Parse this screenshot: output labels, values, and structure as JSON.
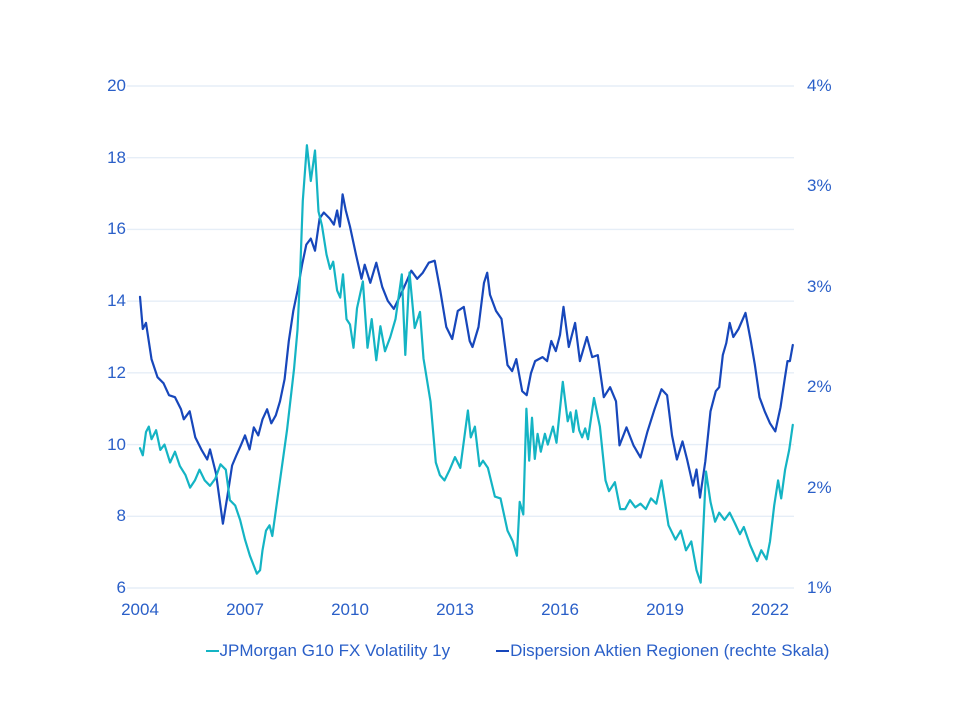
{
  "colors": {
    "teal": "#14b4c4",
    "blue": "#1747bb",
    "label_text": "#2a5fc8",
    "gridline": "#e6eef7",
    "background": "#ffffff"
  },
  "legend": {
    "items": [
      {
        "label": "JPMorgan G10 FX Volatility 1y",
        "color_key": "teal"
      },
      {
        "label": "Dispersion Aktien Regionen (rechte Skala)",
        "color_key": "blue"
      }
    ]
  },
  "chart_data": {
    "type": "line",
    "title": "",
    "grid": "horizontal",
    "legend_position": "bottom",
    "x_axis": {
      "min": 2004,
      "max": 2022.7,
      "ticks": [
        2004,
        2007,
        2010,
        2013,
        2016,
        2019,
        2022
      ]
    },
    "left_axis": {
      "min": 6,
      "max": 20,
      "ticks": [
        20,
        18,
        16,
        14,
        12,
        10,
        8,
        6
      ],
      "tick_labels": [
        "20",
        "18",
        "16",
        "14",
        "12",
        "10",
        "8",
        "6"
      ]
    },
    "right_axis": {
      "min": 1.0,
      "max": 3.5,
      "tick_values": [
        3.5,
        3.0,
        2.5,
        2.0,
        1.5,
        1.0
      ],
      "tick_labels": [
        "4%",
        "3%",
        "3%",
        "2%",
        "2%",
        "1%"
      ]
    },
    "series": [
      {
        "name": "JPMorgan G10 FX Volatility 1y",
        "axis": "left",
        "color_key": "teal",
        "points": [
          [
            2004.0,
            9.9
          ],
          [
            2004.08,
            9.7
          ],
          [
            2004.17,
            10.35
          ],
          [
            2004.25,
            10.5
          ],
          [
            2004.33,
            10.15
          ],
          [
            2004.46,
            10.4
          ],
          [
            2004.58,
            9.85
          ],
          [
            2004.7,
            10.0
          ],
          [
            2004.86,
            9.5
          ],
          [
            2005.0,
            9.8
          ],
          [
            2005.14,
            9.4
          ],
          [
            2005.3,
            9.15
          ],
          [
            2005.43,
            8.8
          ],
          [
            2005.57,
            9.0
          ],
          [
            2005.7,
            9.3
          ],
          [
            2005.85,
            9.0
          ],
          [
            2006.0,
            8.85
          ],
          [
            2006.15,
            9.05
          ],
          [
            2006.3,
            9.45
          ],
          [
            2006.45,
            9.3
          ],
          [
            2006.57,
            8.45
          ],
          [
            2006.72,
            8.3
          ],
          [
            2006.86,
            7.9
          ],
          [
            2007.0,
            7.35
          ],
          [
            2007.14,
            6.9
          ],
          [
            2007.34,
            6.4
          ],
          [
            2007.43,
            6.5
          ],
          [
            2007.5,
            7.05
          ],
          [
            2007.6,
            7.6
          ],
          [
            2007.7,
            7.75
          ],
          [
            2007.78,
            7.45
          ],
          [
            2007.9,
            8.3
          ],
          [
            2008.0,
            9.0
          ],
          [
            2008.1,
            9.7
          ],
          [
            2008.2,
            10.4
          ],
          [
            2008.3,
            11.25
          ],
          [
            2008.4,
            12.1
          ],
          [
            2008.5,
            13.2
          ],
          [
            2008.57,
            14.6
          ],
          [
            2008.65,
            16.8
          ],
          [
            2008.77,
            18.35
          ],
          [
            2008.88,
            17.35
          ],
          [
            2009.0,
            18.2
          ],
          [
            2009.1,
            16.5
          ],
          [
            2009.2,
            16.1
          ],
          [
            2009.33,
            15.3
          ],
          [
            2009.43,
            14.9
          ],
          [
            2009.52,
            15.1
          ],
          [
            2009.63,
            14.3
          ],
          [
            2009.72,
            14.1
          ],
          [
            2009.8,
            14.75
          ],
          [
            2009.9,
            13.5
          ],
          [
            2010.0,
            13.35
          ],
          [
            2010.1,
            12.7
          ],
          [
            2010.2,
            13.8
          ],
          [
            2010.37,
            14.55
          ],
          [
            2010.5,
            12.7
          ],
          [
            2010.62,
            13.5
          ],
          [
            2010.75,
            12.35
          ],
          [
            2010.87,
            13.3
          ],
          [
            2011.0,
            12.6
          ],
          [
            2011.15,
            13.0
          ],
          [
            2011.3,
            13.5
          ],
          [
            2011.48,
            14.75
          ],
          [
            2011.58,
            12.5
          ],
          [
            2011.7,
            14.8
          ],
          [
            2011.85,
            13.25
          ],
          [
            2012.0,
            13.7
          ],
          [
            2012.1,
            12.4
          ],
          [
            2012.3,
            11.2
          ],
          [
            2012.45,
            9.5
          ],
          [
            2012.57,
            9.15
          ],
          [
            2012.7,
            9.0
          ],
          [
            2012.85,
            9.3
          ],
          [
            2013.0,
            9.65
          ],
          [
            2013.15,
            9.35
          ],
          [
            2013.37,
            10.95
          ],
          [
            2013.45,
            10.2
          ],
          [
            2013.57,
            10.5
          ],
          [
            2013.7,
            9.4
          ],
          [
            2013.8,
            9.55
          ],
          [
            2013.94,
            9.35
          ],
          [
            2014.14,
            8.55
          ],
          [
            2014.3,
            8.5
          ],
          [
            2014.5,
            7.6
          ],
          [
            2014.65,
            7.3
          ],
          [
            2014.77,
            6.9
          ],
          [
            2014.85,
            8.4
          ],
          [
            2014.95,
            8.05
          ],
          [
            2015.04,
            11.0
          ],
          [
            2015.12,
            9.55
          ],
          [
            2015.2,
            10.75
          ],
          [
            2015.28,
            9.6
          ],
          [
            2015.36,
            10.3
          ],
          [
            2015.45,
            9.8
          ],
          [
            2015.57,
            10.3
          ],
          [
            2015.65,
            10.0
          ],
          [
            2015.8,
            10.5
          ],
          [
            2015.9,
            10.05
          ],
          [
            2016.08,
            11.75
          ],
          [
            2016.22,
            10.65
          ],
          [
            2016.3,
            10.9
          ],
          [
            2016.38,
            10.35
          ],
          [
            2016.46,
            10.95
          ],
          [
            2016.55,
            10.4
          ],
          [
            2016.63,
            10.2
          ],
          [
            2016.72,
            10.45
          ],
          [
            2016.8,
            10.15
          ],
          [
            2016.97,
            11.3
          ],
          [
            2017.14,
            10.5
          ],
          [
            2017.3,
            9.0
          ],
          [
            2017.4,
            8.7
          ],
          [
            2017.57,
            8.95
          ],
          [
            2017.72,
            8.2
          ],
          [
            2017.86,
            8.2
          ],
          [
            2018.0,
            8.45
          ],
          [
            2018.15,
            8.25
          ],
          [
            2018.3,
            8.35
          ],
          [
            2018.45,
            8.2
          ],
          [
            2018.6,
            8.5
          ],
          [
            2018.75,
            8.35
          ],
          [
            2018.9,
            9.0
          ],
          [
            2019.1,
            7.75
          ],
          [
            2019.3,
            7.35
          ],
          [
            2019.45,
            7.6
          ],
          [
            2019.6,
            7.05
          ],
          [
            2019.75,
            7.3
          ],
          [
            2019.9,
            6.5
          ],
          [
            2020.02,
            6.15
          ],
          [
            2020.17,
            9.25
          ],
          [
            2020.3,
            8.4
          ],
          [
            2020.43,
            7.85
          ],
          [
            2020.55,
            8.1
          ],
          [
            2020.7,
            7.9
          ],
          [
            2020.85,
            8.1
          ],
          [
            2021.0,
            7.8
          ],
          [
            2021.14,
            7.5
          ],
          [
            2021.25,
            7.7
          ],
          [
            2021.43,
            7.2
          ],
          [
            2021.63,
            6.75
          ],
          [
            2021.75,
            7.05
          ],
          [
            2021.9,
            6.8
          ],
          [
            2022.0,
            7.3
          ],
          [
            2022.12,
            8.3
          ],
          [
            2022.23,
            9.0
          ],
          [
            2022.32,
            8.5
          ],
          [
            2022.43,
            9.3
          ],
          [
            2022.55,
            9.85
          ],
          [
            2022.65,
            10.55
          ]
        ]
      },
      {
        "name": "Dispersion Aktien Regionen (rechte Skala)",
        "axis": "right",
        "color_key": "blue",
        "points": [
          [
            2004.0,
            2.45
          ],
          [
            2004.08,
            2.29
          ],
          [
            2004.17,
            2.32
          ],
          [
            2004.33,
            2.14
          ],
          [
            2004.5,
            2.05
          ],
          [
            2004.67,
            2.02
          ],
          [
            2004.83,
            1.96
          ],
          [
            2005.0,
            1.95
          ],
          [
            2005.17,
            1.89
          ],
          [
            2005.25,
            1.84
          ],
          [
            2005.42,
            1.88
          ],
          [
            2005.58,
            1.75
          ],
          [
            2005.75,
            1.69
          ],
          [
            2005.92,
            1.64
          ],
          [
            2006.0,
            1.69
          ],
          [
            2006.17,
            1.57
          ],
          [
            2006.37,
            1.32
          ],
          [
            2006.5,
            1.46
          ],
          [
            2006.63,
            1.61
          ],
          [
            2006.75,
            1.66
          ],
          [
            2006.88,
            1.71
          ],
          [
            2007.0,
            1.76
          ],
          [
            2007.13,
            1.69
          ],
          [
            2007.25,
            1.8
          ],
          [
            2007.38,
            1.76
          ],
          [
            2007.5,
            1.84
          ],
          [
            2007.63,
            1.89
          ],
          [
            2007.75,
            1.82
          ],
          [
            2007.88,
            1.86
          ],
          [
            2008.0,
            1.93
          ],
          [
            2008.13,
            2.04
          ],
          [
            2008.25,
            2.23
          ],
          [
            2008.38,
            2.38
          ],
          [
            2008.5,
            2.48
          ],
          [
            2008.63,
            2.61
          ],
          [
            2008.75,
            2.71
          ],
          [
            2008.88,
            2.74
          ],
          [
            2009.0,
            2.68
          ],
          [
            2009.13,
            2.84
          ],
          [
            2009.25,
            2.87
          ],
          [
            2009.42,
            2.84
          ],
          [
            2009.54,
            2.81
          ],
          [
            2009.63,
            2.88
          ],
          [
            2009.71,
            2.8
          ],
          [
            2009.79,
            2.96
          ],
          [
            2009.88,
            2.88
          ],
          [
            2010.0,
            2.8
          ],
          [
            2010.17,
            2.66
          ],
          [
            2010.33,
            2.54
          ],
          [
            2010.42,
            2.61
          ],
          [
            2010.58,
            2.52
          ],
          [
            2010.75,
            2.62
          ],
          [
            2010.92,
            2.5
          ],
          [
            2011.08,
            2.43
          ],
          [
            2011.25,
            2.39
          ],
          [
            2011.5,
            2.48
          ],
          [
            2011.75,
            2.58
          ],
          [
            2011.92,
            2.54
          ],
          [
            2012.08,
            2.57
          ],
          [
            2012.25,
            2.62
          ],
          [
            2012.42,
            2.63
          ],
          [
            2012.58,
            2.48
          ],
          [
            2012.75,
            2.3
          ],
          [
            2012.92,
            2.24
          ],
          [
            2013.08,
            2.38
          ],
          [
            2013.25,
            2.4
          ],
          [
            2013.42,
            2.23
          ],
          [
            2013.5,
            2.2
          ],
          [
            2013.67,
            2.3
          ],
          [
            2013.83,
            2.52
          ],
          [
            2013.92,
            2.57
          ],
          [
            2014.0,
            2.46
          ],
          [
            2014.17,
            2.38
          ],
          [
            2014.33,
            2.34
          ],
          [
            2014.5,
            2.11
          ],
          [
            2014.63,
            2.08
          ],
          [
            2014.75,
            2.14
          ],
          [
            2014.92,
            1.98
          ],
          [
            2015.05,
            1.96
          ],
          [
            2015.17,
            2.07
          ],
          [
            2015.29,
            2.13
          ],
          [
            2015.5,
            2.15
          ],
          [
            2015.63,
            2.13
          ],
          [
            2015.75,
            2.23
          ],
          [
            2015.88,
            2.18
          ],
          [
            2016.0,
            2.26
          ],
          [
            2016.1,
            2.4
          ],
          [
            2016.25,
            2.2
          ],
          [
            2016.43,
            2.32
          ],
          [
            2016.57,
            2.13
          ],
          [
            2016.77,
            2.25
          ],
          [
            2016.92,
            2.15
          ],
          [
            2017.08,
            2.16
          ],
          [
            2017.25,
            1.95
          ],
          [
            2017.43,
            2.0
          ],
          [
            2017.6,
            1.93
          ],
          [
            2017.7,
            1.71
          ],
          [
            2017.9,
            1.8
          ],
          [
            2018.1,
            1.71
          ],
          [
            2018.3,
            1.65
          ],
          [
            2018.5,
            1.78
          ],
          [
            2018.7,
            1.89
          ],
          [
            2018.9,
            1.99
          ],
          [
            2019.06,
            1.96
          ],
          [
            2019.2,
            1.76
          ],
          [
            2019.34,
            1.64
          ],
          [
            2019.5,
            1.73
          ],
          [
            2019.63,
            1.64
          ],
          [
            2019.8,
            1.51
          ],
          [
            2019.9,
            1.59
          ],
          [
            2020.0,
            1.45
          ],
          [
            2020.15,
            1.63
          ],
          [
            2020.3,
            1.88
          ],
          [
            2020.45,
            1.98
          ],
          [
            2020.55,
            2.0
          ],
          [
            2020.65,
            2.16
          ],
          [
            2020.75,
            2.22
          ],
          [
            2020.85,
            2.32
          ],
          [
            2020.95,
            2.25
          ],
          [
            2021.1,
            2.29
          ],
          [
            2021.3,
            2.37
          ],
          [
            2021.45,
            2.23
          ],
          [
            2021.57,
            2.11
          ],
          [
            2021.7,
            1.95
          ],
          [
            2021.85,
            1.88
          ],
          [
            2022.0,
            1.82
          ],
          [
            2022.15,
            1.78
          ],
          [
            2022.3,
            1.9
          ],
          [
            2022.42,
            2.04
          ],
          [
            2022.5,
            2.13
          ],
          [
            2022.57,
            2.13
          ],
          [
            2022.65,
            2.21
          ]
        ]
      }
    ]
  }
}
